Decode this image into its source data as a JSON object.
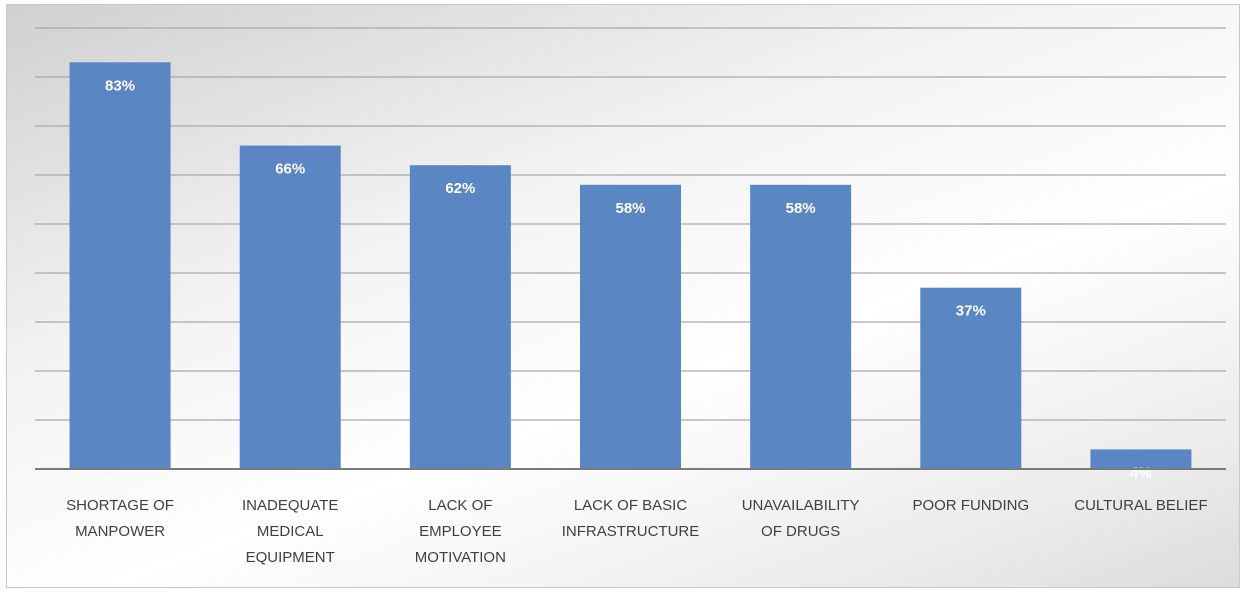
{
  "chart_data": {
    "type": "bar",
    "title": "",
    "xlabel": "",
    "ylabel": "",
    "categories": [
      [
        "SHORTAGE OF",
        "MANPOWER"
      ],
      [
        "INADEQUATE",
        "MEDICAL",
        "EQUIPMENT"
      ],
      [
        "LACK OF",
        "EMPLOYEE",
        "MOTIVATION"
      ],
      [
        "LACK OF BASIC",
        "INFRASTRUCTURE"
      ],
      [
        "UNAVAILABILITY",
        "OF DRUGS"
      ],
      [
        "POOR FUNDING"
      ],
      [
        "CULTURAL BELIEF"
      ]
    ],
    "values": [
      83,
      66,
      62,
      58,
      58,
      37,
      4
    ],
    "data_labels": [
      "83%",
      "66%",
      "62%",
      "58%",
      "58%",
      "37%",
      "4%"
    ],
    "ylim": [
      0,
      90
    ],
    "grid": true,
    "legend": "none",
    "bar_color": "#5b86c4",
    "gridline_color": "#a9a9a9",
    "data_label_color": "#ffffff"
  }
}
